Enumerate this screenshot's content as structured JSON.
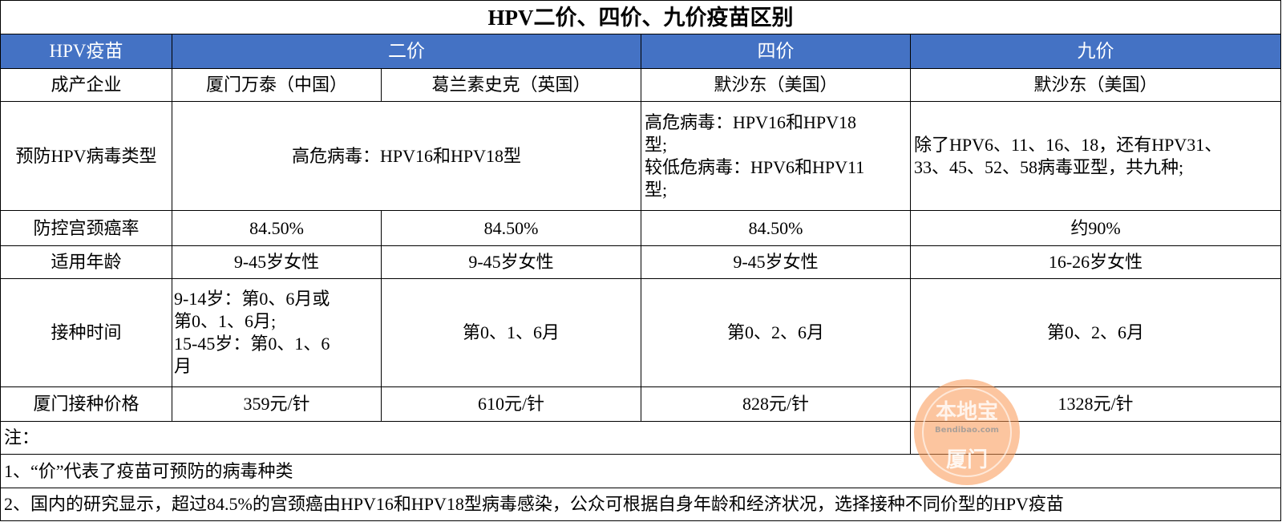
{
  "title": "HPV二价、四价、九价疫苗区别",
  "header": {
    "col0": "HPV疫苗",
    "bivalent": "二价",
    "quadrivalent": "四价",
    "nonavalent": "九价"
  },
  "colors": {
    "header_bg": "#4472c4",
    "header_text": "#ffffff",
    "watermark": "#f9a36b"
  },
  "rows": {
    "maker": {
      "label": "成产企业",
      "c1": "厦门万泰（中国）",
      "c2": "葛兰素史克（英国）",
      "c3": "默沙东（美国）",
      "c4": "默沙东（美国）"
    },
    "types": {
      "label": "预防HPV病毒类型",
      "c12": "高危病毒：HPV16和HPV18型",
      "c3_l1": "高危病毒：HPV16和HPV18",
      "c3_l2": "型;",
      "c3_l3": "较低危病毒：HPV6和HPV11",
      "c3_l4": "型;",
      "c4_l1": "除了HPV6、11、16、18，还有HPV31、",
      "c4_l2": "33、45、52、58病毒亚型，共九种;"
    },
    "rate": {
      "label": "防控宫颈癌率",
      "c1": "84.50%",
      "c2": "84.50%",
      "c3": "84.50%",
      "c4": "约90%"
    },
    "age": {
      "label": "适用年龄",
      "c1": "9-45岁女性",
      "c2": "9-45岁女性",
      "c3": "9-45岁女性",
      "c4": "16-26岁女性"
    },
    "schedule": {
      "label": "接种时间",
      "c1_l1": "9-14岁：第0、6月或",
      "c1_l2": "第0、1、6月;",
      "c1_l3": "15-45岁：第0、1、6",
      "c1_l4": "月",
      "c2": "第0、1、6月",
      "c3": "第0、2、6月",
      "c4": "第0、2、6月"
    },
    "price": {
      "label": "厦门接种价格",
      "c1": "359元/针",
      "c2": "610元/针",
      "c3": "828元/针",
      "c4": "1328元/针"
    }
  },
  "notes": {
    "label": "注：",
    "n1": "1、“价”代表了疫苗可预防的病毒种类",
    "n2": "2、国内的研究显示，超过84.5%的宫颈癌由HPV16和HPV18型病毒感染，公众可根据自身年龄和经济状况，选择接种不同价型的HPV疫苗"
  },
  "watermark": {
    "brand": "本地宝",
    "site": "Bendibao.com",
    "city": "厦门"
  }
}
